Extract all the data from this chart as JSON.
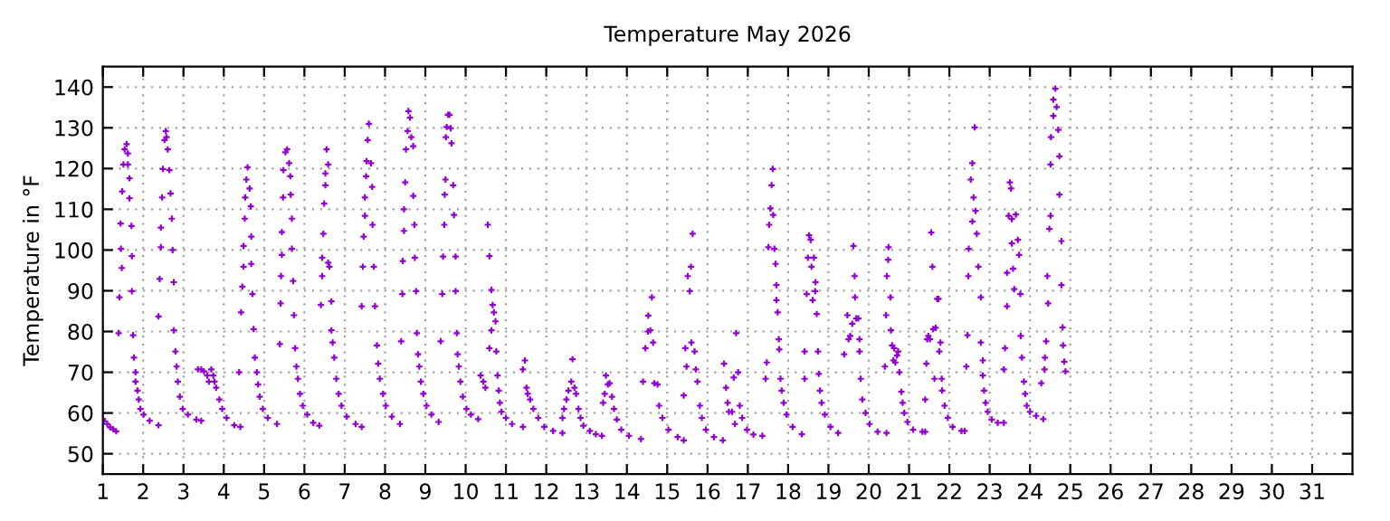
{
  "chart_data": {
    "type": "scatter",
    "title": "Temperature May 2026",
    "ylabel": "Temperature in °F",
    "xlim": [
      1,
      32
    ],
    "xticks": [
      1,
      2,
      3,
      4,
      5,
      6,
      7,
      8,
      9,
      10,
      11,
      12,
      13,
      14,
      15,
      16,
      17,
      18,
      19,
      20,
      21,
      22,
      23,
      24,
      25,
      26,
      27,
      28,
      29,
      30,
      31
    ],
    "ylim": [
      45,
      145
    ],
    "yticks": [
      50,
      60,
      70,
      80,
      90,
      100,
      110,
      120,
      130,
      140
    ],
    "grid": true,
    "marker": "cross",
    "legend": false,
    "series": [
      {
        "color": "#9400d3",
        "x": [
          1.0,
          1.03,
          1.11,
          1.18,
          1.26,
          1.33,
          1.41,
          1.39,
          1.47,
          1.45,
          1.44,
          1.48,
          1.51,
          1.54,
          1.59,
          1.62,
          1.62,
          1.66,
          1.66,
          1.71,
          1.72,
          1.72,
          1.75,
          1.77,
          1.81,
          1.81,
          1.86,
          1.89,
          1.93,
          2.01,
          2.16,
          2.38,
          2.38,
          2.41,
          2.44,
          2.44,
          2.47,
          2.49,
          2.53,
          2.56,
          2.58,
          2.61,
          2.65,
          2.68,
          2.71,
          2.73,
          2.76,
          2.76,
          2.8,
          2.83,
          2.86,
          2.91,
          2.98,
          3.11,
          3.32,
          3.44,
          3.36,
          3.44,
          3.51,
          3.59,
          3.63,
          3.69,
          3.74,
          3.77,
          3.81,
          3.89,
          3.96,
          4.07,
          4.26,
          4.41,
          4.38,
          4.43,
          4.46,
          4.49,
          4.49,
          4.52,
          4.53,
          4.56,
          4.59,
          4.64,
          4.67,
          4.68,
          4.68,
          4.71,
          4.74,
          4.77,
          4.82,
          4.85,
          4.89,
          4.97,
          5.09,
          5.32,
          5.39,
          5.41,
          5.42,
          5.44,
          5.44,
          5.47,
          5.48,
          5.53,
          5.57,
          5.62,
          5.65,
          5.66,
          5.69,
          5.69,
          5.72,
          5.74,
          5.77,
          5.8,
          5.84,
          5.89,
          5.96,
          6.07,
          6.22,
          6.37,
          6.41,
          6.44,
          6.44,
          6.47,
          6.49,
          6.52,
          6.52,
          6.55,
          6.59,
          6.59,
          6.62,
          6.67,
          6.67,
          6.7,
          6.74,
          6.79,
          6.85,
          6.92,
          7.05,
          7.27,
          7.42,
          7.42,
          7.45,
          7.47,
          7.5,
          7.5,
          7.53,
          7.54,
          7.57,
          7.6,
          7.65,
          7.68,
          7.69,
          7.72,
          7.75,
          7.8,
          7.83,
          7.87,
          7.95,
          8.02,
          8.17,
          8.37,
          8.4,
          8.43,
          8.44,
          8.47,
          8.47,
          8.5,
          8.52,
          8.56,
          8.58,
          8.62,
          8.65,
          8.7,
          8.7,
          8.73,
          8.74,
          8.77,
          8.79,
          8.82,
          8.85,
          8.89,
          8.95,
          9.03,
          9.15,
          9.33,
          9.38,
          9.42,
          9.44,
          9.47,
          9.48,
          9.5,
          9.51,
          9.53,
          9.56,
          9.6,
          9.63,
          9.65,
          9.69,
          9.71,
          9.75,
          9.75,
          9.78,
          9.8,
          9.83,
          9.87,
          9.93,
          10.02,
          10.13,
          10.31,
          10.37,
          10.44,
          10.49,
          10.55,
          10.59,
          10.64,
          10.67,
          10.7,
          10.64,
          10.74,
          10.59,
          10.76,
          10.79,
          10.82,
          10.85,
          10.89,
          11.0,
          11.15,
          11.42,
          11.42,
          11.47,
          11.51,
          11.54,
          11.6,
          11.68,
          11.8,
          11.95,
          12.17,
          12.4,
          12.4,
          12.44,
          12.5,
          12.55,
          12.62,
          12.65,
          12.7,
          12.74,
          12.8,
          12.85,
          12.92,
          13.08,
          13.23,
          13.38,
          13.41,
          13.45,
          13.48,
          13.53,
          13.57,
          13.63,
          13.68,
          13.75,
          13.86,
          14.05,
          14.35,
          14.4,
          14.46,
          14.52,
          14.53,
          14.58,
          14.62,
          14.65,
          14.68,
          14.76,
          14.8,
          14.88,
          15.03,
          15.26,
          15.41,
          15.41,
          15.45,
          15.48,
          15.51,
          15.56,
          15.59,
          15.63,
          15.6,
          15.68,
          15.71,
          15.75,
          15.81,
          15.86,
          15.96,
          16.16,
          16.38,
          16.41,
          16.46,
          16.5,
          16.53,
          16.61,
          16.65,
          16.71,
          16.68,
          16.76,
          16.8,
          16.86,
          16.98,
          17.14,
          17.36,
          17.44,
          17.47,
          17.51,
          17.53,
          17.56,
          17.59,
          17.62,
          17.63,
          17.66,
          17.69,
          17.71,
          17.71,
          17.74,
          17.77,
          17.78,
          17.81,
          17.84,
          17.89,
          17.96,
          18.11,
          18.34,
          18.41,
          18.41,
          18.46,
          18.49,
          18.52,
          18.56,
          18.58,
          18.61,
          18.64,
          18.67,
          18.68,
          18.71,
          18.74,
          18.76,
          18.79,
          18.83,
          18.91,
          19.05,
          19.24,
          19.39,
          19.47,
          19.5,
          19.54,
          19.59,
          19.62,
          19.65,
          19.66,
          19.69,
          19.74,
          19.77,
          19.77,
          19.8,
          19.84,
          19.92,
          20.02,
          20.22,
          20.44,
          20.4,
          20.43,
          20.45,
          20.48,
          20.49,
          20.54,
          20.55,
          20.58,
          20.61,
          20.63,
          20.66,
          20.7,
          20.73,
          20.76,
          20.81,
          20.84,
          20.88,
          20.96,
          21.1,
          21.33,
          21.4,
          21.4,
          21.43,
          21.45,
          21.48,
          21.52,
          21.55,
          21.58,
          21.6,
          21.63,
          21.66,
          21.7,
          21.73,
          21.75,
          21.78,
          21.81,
          21.82,
          21.88,
          21.96,
          22.08,
          22.3,
          22.38,
          22.42,
          22.45,
          22.47,
          22.48,
          22.53,
          22.57,
          22.63,
          22.6,
          22.57,
          22.65,
          22.68,
          22.72,
          22.78,
          22.78,
          22.83,
          22.83,
          22.86,
          22.9,
          22.95,
          23.05,
          23.2,
          23.35,
          23.35,
          23.38,
          23.43,
          23.43,
          23.47,
          23.5,
          23.53,
          23.55,
          23.55,
          23.58,
          23.61,
          23.65,
          23.7,
          23.73,
          23.76,
          23.77,
          23.8,
          23.85,
          23.88,
          23.92,
          24.0,
          24.15,
          24.33,
          24.28,
          24.36,
          24.37,
          24.4,
          24.43,
          24.45,
          24.48,
          24.51,
          24.51,
          24.52,
          24.58,
          24.58,
          24.63,
          24.66,
          24.7,
          24.73,
          24.73,
          24.78,
          24.78,
          24.81,
          24.82,
          24.85,
          24.88
        ],
        "values": [
          58.5,
          58,
          57.3,
          56.5,
          56,
          55.5,
          88.4,
          79.6,
          95.6,
          100.3,
          106.5,
          114.4,
          121,
          124.7,
          126,
          123.7,
          121,
          117.6,
          112.7,
          105.9,
          98.5,
          89.9,
          79.1,
          73.6,
          70,
          67.7,
          65.5,
          63.3,
          61,
          59.6,
          58.1,
          57,
          83.7,
          92.9,
          100.7,
          105.5,
          112.9,
          119.9,
          127,
          129.2,
          127.7,
          124.7,
          119.6,
          113.9,
          107.7,
          100,
          92.1,
          80.3,
          75.1,
          71.4,
          67.7,
          64,
          61,
          59.6,
          58.4,
          58.1,
          70.7,
          70.7,
          70.2,
          69.2,
          67.7,
          70.7,
          69.2,
          67.7,
          66.2,
          63.3,
          61,
          58.8,
          57,
          56.6,
          70,
          84.7,
          91,
          95.9,
          101,
          107.7,
          112.9,
          117.3,
          120.3,
          115.1,
          110.7,
          103.3,
          96.6,
          89.2,
          80.6,
          73.6,
          70,
          67,
          64,
          61,
          58.8,
          57.3,
          76.9,
          86.9,
          93.6,
          98.8,
          104.4,
          112.9,
          119.6,
          124,
          124.7,
          121.3,
          118.1,
          113.6,
          107.7,
          100.3,
          92.4,
          84,
          75.9,
          71.4,
          68.4,
          64.7,
          61.8,
          59.6,
          57.6,
          56.9,
          86.5,
          93.6,
          98.1,
          104,
          111.4,
          115.9,
          118.8,
          124.7,
          121,
          96.9,
          95.9,
          87.4,
          80.3,
          77.3,
          73.6,
          68.4,
          64.7,
          61.8,
          59.1,
          57.3,
          56.6,
          86.2,
          95.9,
          103.3,
          108.4,
          112.9,
          118.1,
          121.8,
          127,
          131,
          121.3,
          115.5,
          106.2,
          95.9,
          86.2,
          76.6,
          72.1,
          68.4,
          64.7,
          61.8,
          59.1,
          57.3,
          77.6,
          89.2,
          97.3,
          104.7,
          110,
          116.6,
          124.7,
          129.2,
          134.1,
          132.5,
          127.7,
          125.5,
          113.3,
          106.2,
          98.1,
          89.9,
          79.6,
          74.4,
          71.4,
          67.7,
          64.7,
          61.8,
          59.6,
          57.8,
          77.6,
          89.2,
          98.4,
          106.2,
          113.6,
          117.3,
          127.7,
          130.2,
          133.2,
          133.2,
          129.9,
          126.2,
          115.9,
          108.6,
          98.4,
          89.9,
          79.6,
          74.4,
          71.4,
          67.7,
          64,
          61,
          59.6,
          58.5,
          69.2,
          67.7,
          66.2,
          106.2,
          98.5,
          90.2,
          86.5,
          84.7,
          80.3,
          82.5,
          75.9,
          75.1,
          69.2,
          65.5,
          62.5,
          60.3,
          58.8,
          57.3,
          56.6,
          70.7,
          72.9,
          66.2,
          64.7,
          63.3,
          61,
          58.8,
          56.6,
          55.6,
          55.1,
          58.8,
          61,
          63.3,
          65.5,
          67.7,
          73.2,
          66.2,
          64.7,
          61,
          58.8,
          56.9,
          55.6,
          54.8,
          54.4,
          62.5,
          64.7,
          69.2,
          67,
          67.3,
          64,
          61,
          58.4,
          55.9,
          54.4,
          53.6,
          67.7,
          75.9,
          80,
          83.9,
          80.3,
          88.4,
          77.3,
          67.3,
          67,
          61.8,
          58.8,
          55.9,
          54.1,
          53.3,
          64.3,
          75.9,
          71.4,
          93.6,
          89.9,
          95.9,
          104,
          77.3,
          75.1,
          70.7,
          67.7,
          61.8,
          58.8,
          55.9,
          54.1,
          53.3,
          72.1,
          66.2,
          62.5,
          60.3,
          60.3,
          68.7,
          79.6,
          57.3,
          70,
          61.8,
          58.8,
          55.9,
          54.7,
          54.4,
          68.4,
          72.4,
          100.7,
          106.2,
          110.2,
          115.9,
          119.9,
          108.6,
          100.3,
          96.6,
          91.4,
          87.7,
          84.7,
          78.1,
          75.6,
          68.4,
          65.5,
          62.5,
          59.6,
          56.6,
          54.8,
          75.1,
          68.4,
          89.2,
          98.1,
          103.6,
          102.5,
          95.9,
          87.7,
          98.1,
          89.9,
          92.1,
          84.3,
          75.1,
          69.6,
          65.5,
          62.5,
          59.6,
          56.6,
          55.1,
          74.4,
          84,
          78.1,
          78.9,
          81.9,
          101,
          93.6,
          88.4,
          83.2,
          83.2,
          78.1,
          75.1,
          68.4,
          63.3,
          60,
          57.3,
          55.4,
          55.1,
          71.4,
          84,
          93.6,
          97.6,
          100.7,
          88.4,
          80.3,
          76.6,
          72.9,
          75.9,
          72.4,
          74.1,
          75.1,
          70,
          65.2,
          62.5,
          60,
          57.8,
          55.9,
          55.4,
          55.4,
          63.3,
          72.1,
          78.1,
          78.9,
          78.1,
          104.3,
          95.9,
          80.6,
          68.4,
          80.9,
          88,
          88,
          75.1,
          77.3,
          68.4,
          65.5,
          61.8,
          58.8,
          56.6,
          55.6,
          55.6,
          71.4,
          79.1,
          93.6,
          100.3,
          117.3,
          121.3,
          130.1,
          112.9,
          107,
          109.6,
          104,
          95.9,
          88.4,
          77.3,
          72.9,
          69.2,
          65.5,
          62.5,
          60.3,
          58.4,
          57.6,
          57.6,
          70.7,
          75.9,
          86.2,
          94.4,
          108.4,
          116.6,
          115.1,
          107.6,
          101.6,
          95.4,
          90.4,
          108.7,
          102.5,
          98.8,
          89.2,
          78.9,
          73.6,
          67.7,
          64.7,
          61.8,
          60.3,
          59.3,
          58.5,
          67.3,
          70.7,
          73.6,
          77.6,
          93.6,
          86.9,
          105.2,
          108.4,
          121,
          127.7,
          132.9,
          136.9,
          139.6,
          135.1,
          129.5,
          123,
          113.6,
          102.2,
          91.4,
          81,
          76.6,
          72.6,
          70.2
        ]
      }
    ]
  }
}
